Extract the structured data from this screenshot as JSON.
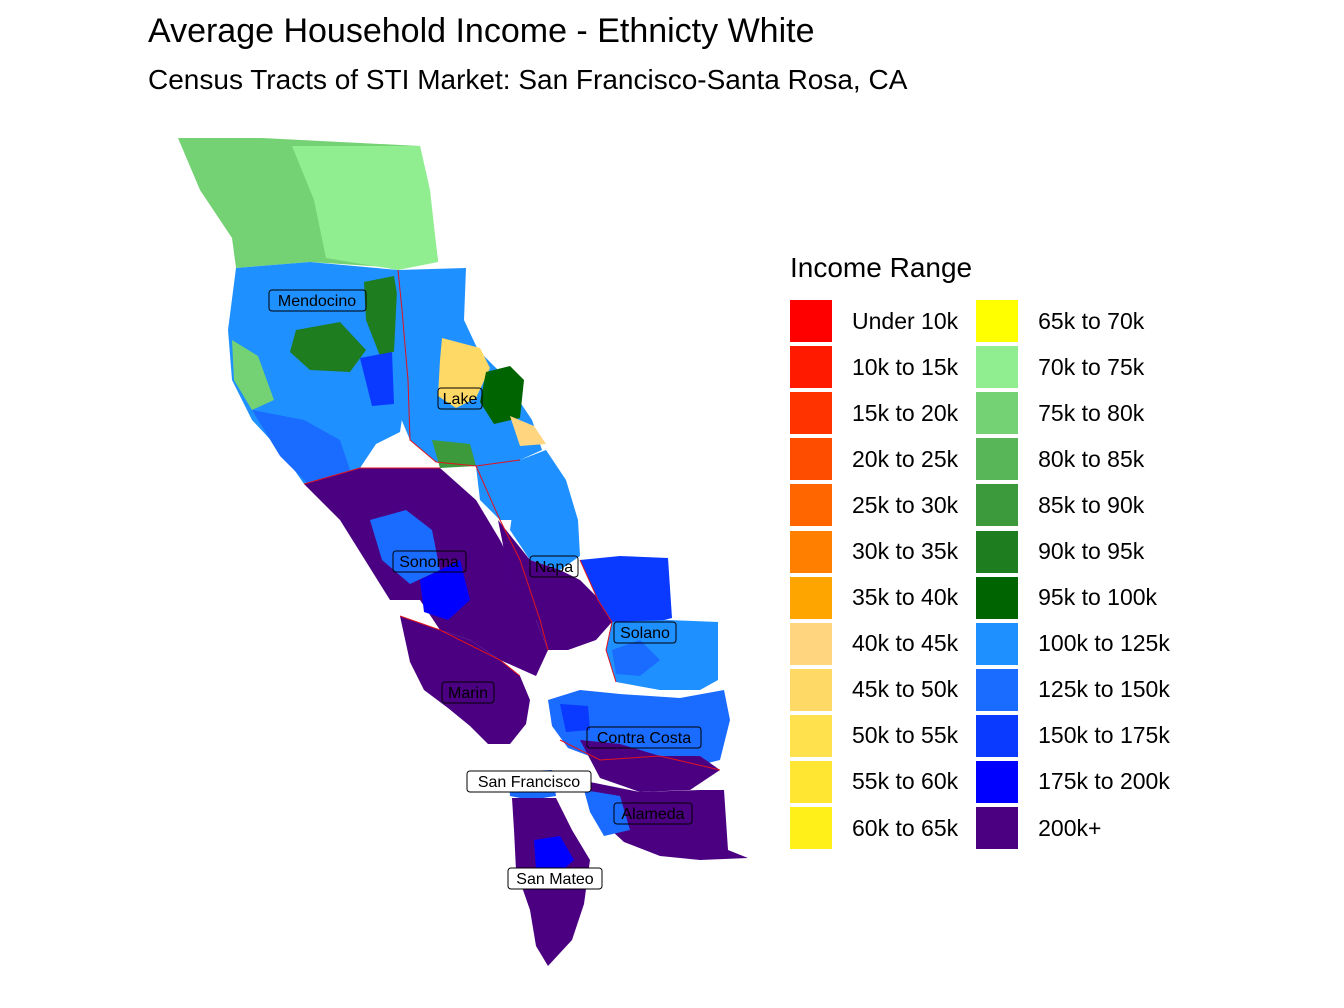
{
  "title": "Average Household Income - Ethnicty White",
  "subtitle": "Census Tracts of STI Market: San Francisco-Santa Rosa, CA",
  "legend": {
    "title": "Income Range",
    "items": [
      {
        "label": "Under 10k",
        "color": "#FF0000"
      },
      {
        "label": "10k to 15k",
        "color": "#FF1A00"
      },
      {
        "label": "15k to 20k",
        "color": "#FF3300"
      },
      {
        "label": "20k to 25k",
        "color": "#FF4D00"
      },
      {
        "label": "25k to 30k",
        "color": "#FF6600"
      },
      {
        "label": "30k to 35k",
        "color": "#FF8000"
      },
      {
        "label": "35k to 40k",
        "color": "#FFA500"
      },
      {
        "label": "40k to 45k",
        "color": "#FFD580"
      },
      {
        "label": "45k to 50k",
        "color": "#FFD966"
      },
      {
        "label": "50k to 55k",
        "color": "#FFE04D"
      },
      {
        "label": "55k to 60k",
        "color": "#FFE633"
      },
      {
        "label": "60k to 65k",
        "color": "#FFF01A"
      },
      {
        "label": "65k to 70k",
        "color": "#FFFF00"
      },
      {
        "label": "70k to 75k",
        "color": "#90EE90"
      },
      {
        "label": "75k to 80k",
        "color": "#74D274"
      },
      {
        "label": "80k to 85k",
        "color": "#58B558"
      },
      {
        "label": "85k to 90k",
        "color": "#3C993C"
      },
      {
        "label": "90k to 95k",
        "color": "#1E7D1E"
      },
      {
        "label": "95k to 100k",
        "color": "#006400"
      },
      {
        "label": "100k to 125k",
        "color": "#1E90FF"
      },
      {
        "label": "125k to 150k",
        "color": "#1A6BFF"
      },
      {
        "label": "150k to 175k",
        "color": "#0A3AFF"
      },
      {
        "label": "175k to 200k",
        "color": "#0000FF"
      },
      {
        "label": "200k+",
        "color": "#4B0082"
      }
    ]
  },
  "counties": [
    {
      "name": "Mendocino",
      "income_range": "100k to 125k"
    },
    {
      "name": "Lake",
      "income_range": "45k to 50k"
    },
    {
      "name": "Sonoma",
      "income_range": "200k+"
    },
    {
      "name": "Napa",
      "income_range": "200k+"
    },
    {
      "name": "Solano",
      "income_range": "100k to 125k"
    },
    {
      "name": "Marin",
      "income_range": "200k+"
    },
    {
      "name": "Contra Costa",
      "income_range": "200k+"
    },
    {
      "name": "San Francisco",
      "income_range": "125k to 150k"
    },
    {
      "name": "Alameda",
      "income_range": "200k+"
    },
    {
      "name": "San Mateo",
      "income_range": "200k+"
    }
  ]
}
